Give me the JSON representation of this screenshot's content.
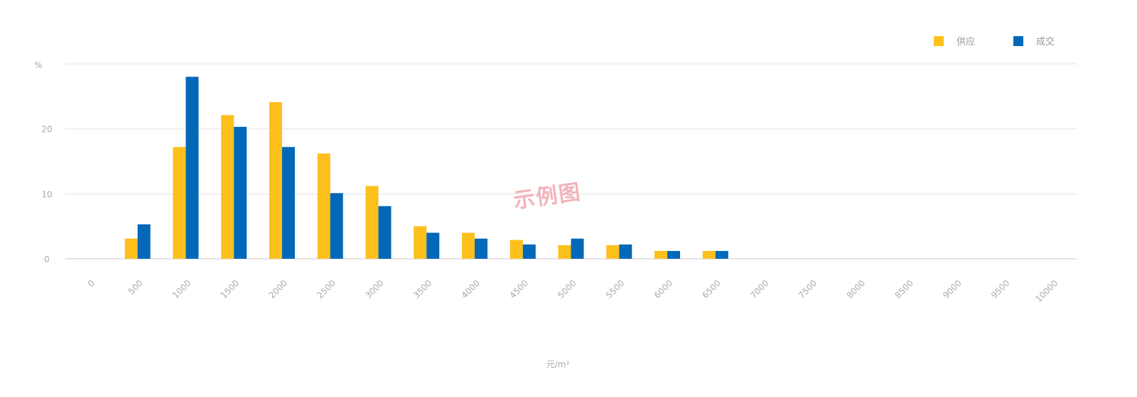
{
  "chart_data": {
    "type": "bar",
    "title": "",
    "xlabel": "元/m²",
    "ylabel": "",
    "y_unit_label": "%",
    "ylim": [
      0,
      30
    ],
    "yticks": [
      "0",
      "10",
      "20"
    ],
    "grid": true,
    "legend_position": "top-right",
    "categories": [
      "0",
      "500",
      "1000",
      "1500",
      "2000",
      "2500",
      "3000",
      "3500",
      "4000",
      "4500",
      "5000",
      "5500",
      "6000",
      "6500",
      "7000",
      "7500",
      "8000",
      "8500",
      "9000",
      "9500",
      "10000"
    ],
    "series": [
      {
        "name": "供应",
        "color": "#FDBF1A",
        "values": [
          0,
          3.1,
          17.2,
          22.1,
          24.1,
          16.2,
          11.2,
          5.0,
          4.0,
          2.9,
          2.1,
          2.1,
          1.2,
          1.2,
          0,
          0,
          0,
          0,
          0,
          0,
          0
        ]
      },
      {
        "name": "成交",
        "color": "#0468B8",
        "values": [
          0,
          5.3,
          28.0,
          20.3,
          17.2,
          10.1,
          8.1,
          4.0,
          3.1,
          2.2,
          3.1,
          2.2,
          1.2,
          1.2,
          0,
          0,
          0,
          0,
          0,
          0,
          0
        ]
      }
    ]
  },
  "watermark": "示例图"
}
